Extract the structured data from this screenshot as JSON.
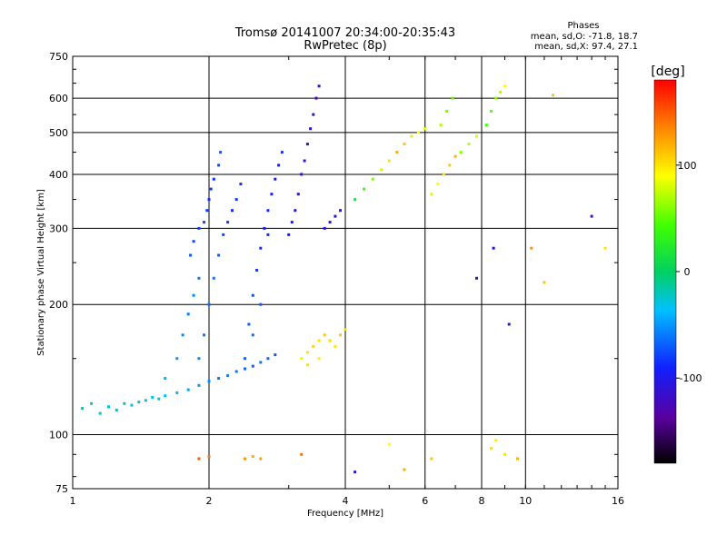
{
  "header": {
    "title_line1": "Tromsø 20141007 20:34:00-20:35:43",
    "title_line2": "RwPretec (8p)",
    "stats_title": "Phases",
    "stats_o": "mean, sd,O: -71.8, 18.7",
    "stats_x": "mean, sd,X:  97.4, 27.1"
  },
  "chart_data": {
    "type": "scatter",
    "xlabel": "Frequency [MHz]",
    "ylabel": "Stationary phase Virtual Height [km]",
    "xscale": "log",
    "yscale": "log",
    "xlim": [
      1,
      16
    ],
    "ylim": [
      75,
      750
    ],
    "x_ticks": [
      1,
      2,
      4,
      6,
      8,
      10,
      16
    ],
    "x_tick_labels": [
      "1",
      "2",
      "4",
      "6",
      "8",
      "10",
      "16"
    ],
    "y_ticks": [
      75,
      100,
      200,
      300,
      400,
      500,
      600,
      750
    ],
    "y_tick_labels": [
      "75",
      "100",
      "200",
      "300",
      "400",
      "500",
      "600",
      "750"
    ],
    "grid": true,
    "colorbar": {
      "label": "[deg]",
      "range": [
        -180,
        180
      ],
      "ticks": [
        100,
        0,
        -100
      ],
      "tick_labels": [
        "100",
        "0",
        "-100"
      ]
    },
    "series": [
      {
        "points": [
          [
            1.05,
            115,
            -20
          ],
          [
            1.1,
            118,
            -25
          ],
          [
            1.15,
            112,
            -20
          ],
          [
            1.2,
            116,
            -30
          ],
          [
            1.25,
            114,
            -25
          ],
          [
            1.3,
            118,
            -20
          ],
          [
            1.35,
            117,
            -30
          ],
          [
            1.4,
            119,
            -25
          ],
          [
            1.45,
            120,
            -35
          ],
          [
            1.5,
            122,
            -30
          ],
          [
            1.55,
            121,
            -25
          ],
          [
            1.6,
            123,
            -35
          ],
          [
            1.7,
            125,
            -40
          ],
          [
            1.8,
            127,
            -45
          ],
          [
            1.9,
            130,
            -50
          ],
          [
            2.0,
            133,
            -55
          ],
          [
            2.1,
            135,
            -60
          ],
          [
            2.2,
            137,
            -55
          ],
          [
            2.3,
            140,
            -60
          ],
          [
            2.4,
            142,
            -65
          ],
          [
            2.5,
            144,
            -70
          ],
          [
            2.6,
            147,
            -60
          ],
          [
            2.7,
            150,
            -65
          ],
          [
            2.8,
            153,
            -70
          ],
          [
            1.6,
            135,
            -40
          ],
          [
            1.7,
            150,
            -50
          ],
          [
            1.75,
            170,
            -55
          ],
          [
            1.8,
            190,
            -60
          ],
          [
            1.85,
            210,
            -55
          ],
          [
            1.9,
            230,
            -60
          ],
          [
            1.82,
            260,
            -70
          ],
          [
            1.85,
            280,
            -75
          ],
          [
            1.9,
            300,
            -80
          ],
          [
            1.95,
            310,
            -75
          ],
          [
            1.98,
            330,
            -80
          ],
          [
            2.0,
            350,
            -85
          ],
          [
            2.02,
            370,
            -80
          ],
          [
            2.05,
            390,
            -85
          ],
          [
            2.1,
            420,
            -75
          ],
          [
            2.12,
            450,
            -70
          ],
          [
            1.9,
            150,
            -55
          ],
          [
            1.95,
            170,
            -60
          ],
          [
            2.0,
            200,
            -65
          ],
          [
            2.05,
            230,
            -60
          ],
          [
            2.1,
            260,
            -70
          ],
          [
            2.15,
            290,
            -75
          ],
          [
            2.2,
            310,
            -80
          ],
          [
            2.25,
            330,
            -85
          ],
          [
            2.3,
            350,
            -80
          ],
          [
            2.35,
            380,
            -85
          ],
          [
            2.4,
            150,
            -65
          ],
          [
            2.45,
            180,
            -70
          ],
          [
            2.5,
            210,
            -75
          ],
          [
            2.55,
            240,
            -80
          ],
          [
            2.6,
            270,
            -85
          ],
          [
            2.65,
            300,
            -90
          ],
          [
            2.7,
            330,
            -85
          ],
          [
            2.75,
            360,
            -90
          ],
          [
            2.8,
            390,
            -95
          ],
          [
            2.85,
            420,
            -90
          ],
          [
            2.9,
            450,
            -85
          ],
          [
            2.7,
            290,
            -85
          ],
          [
            2.6,
            200,
            -70
          ],
          [
            2.5,
            170,
            -65
          ],
          [
            3.0,
            290,
            -100
          ],
          [
            3.05,
            310,
            -110
          ],
          [
            3.1,
            330,
            -105
          ],
          [
            3.15,
            360,
            -110
          ],
          [
            3.2,
            400,
            -115
          ],
          [
            3.25,
            430,
            -110
          ],
          [
            3.3,
            470,
            -120
          ],
          [
            3.35,
            510,
            -115
          ],
          [
            3.4,
            550,
            -120
          ],
          [
            3.45,
            600,
            -125
          ],
          [
            3.5,
            640,
            -120
          ],
          [
            3.6,
            300,
            -110
          ],
          [
            3.7,
            310,
            -115
          ],
          [
            3.8,
            320,
            -110
          ],
          [
            3.9,
            330,
            -105
          ],
          [
            3.2,
            150,
            95
          ],
          [
            3.3,
            155,
            100
          ],
          [
            3.4,
            160,
            105
          ],
          [
            3.5,
            165,
            100
          ],
          [
            3.6,
            170,
            110
          ],
          [
            3.7,
            165,
            105
          ],
          [
            3.8,
            160,
            100
          ],
          [
            3.9,
            170,
            110
          ],
          [
            4.0,
            175,
            105
          ],
          [
            3.3,
            145,
            100
          ],
          [
            3.5,
            150,
            95
          ],
          [
            4.2,
            350,
            20
          ],
          [
            4.4,
            370,
            40
          ],
          [
            4.6,
            390,
            60
          ],
          [
            4.8,
            410,
            80
          ],
          [
            5.0,
            430,
            100
          ],
          [
            5.2,
            450,
            120
          ],
          [
            5.4,
            470,
            110
          ],
          [
            5.6,
            490,
            100
          ],
          [
            5.8,
            500,
            90
          ],
          [
            6.0,
            510,
            80
          ],
          [
            6.2,
            360,
            80
          ],
          [
            6.4,
            380,
            90
          ],
          [
            6.6,
            400,
            100
          ],
          [
            6.8,
            420,
            110
          ],
          [
            7.0,
            440,
            120
          ],
          [
            6.5,
            520,
            70
          ],
          [
            6.7,
            560,
            60
          ],
          [
            6.9,
            600,
            50
          ],
          [
            7.2,
            450,
            60
          ],
          [
            7.5,
            470,
            70
          ],
          [
            7.8,
            490,
            80
          ],
          [
            8.2,
            520,
            40
          ],
          [
            8.4,
            560,
            50
          ],
          [
            8.6,
            600,
            60
          ],
          [
            8.8,
            620,
            70
          ],
          [
            9.0,
            640,
            90
          ],
          [
            1.9,
            88,
            150
          ],
          [
            2.0,
            89,
            140
          ],
          [
            2.4,
            88,
            130
          ],
          [
            2.5,
            89,
            120
          ],
          [
            2.6,
            88,
            125
          ],
          [
            3.2,
            90,
            140
          ],
          [
            4.2,
            82,
            -110
          ],
          [
            5.0,
            95,
            90
          ],
          [
            5.4,
            83,
            120
          ],
          [
            6.2,
            88,
            110
          ],
          [
            8.4,
            93,
            100
          ],
          [
            8.6,
            97,
            95
          ],
          [
            9.0,
            90,
            100
          ],
          [
            9.6,
            88,
            120
          ],
          [
            7.8,
            230,
            -120
          ],
          [
            8.5,
            270,
            -110
          ],
          [
            9.2,
            180,
            -100
          ],
          [
            10.3,
            270,
            130
          ],
          [
            11.0,
            225,
            110
          ],
          [
            14.0,
            320,
            -120
          ],
          [
            15.0,
            270,
            100
          ],
          [
            11.5,
            610,
            110
          ]
        ]
      }
    ]
  }
}
